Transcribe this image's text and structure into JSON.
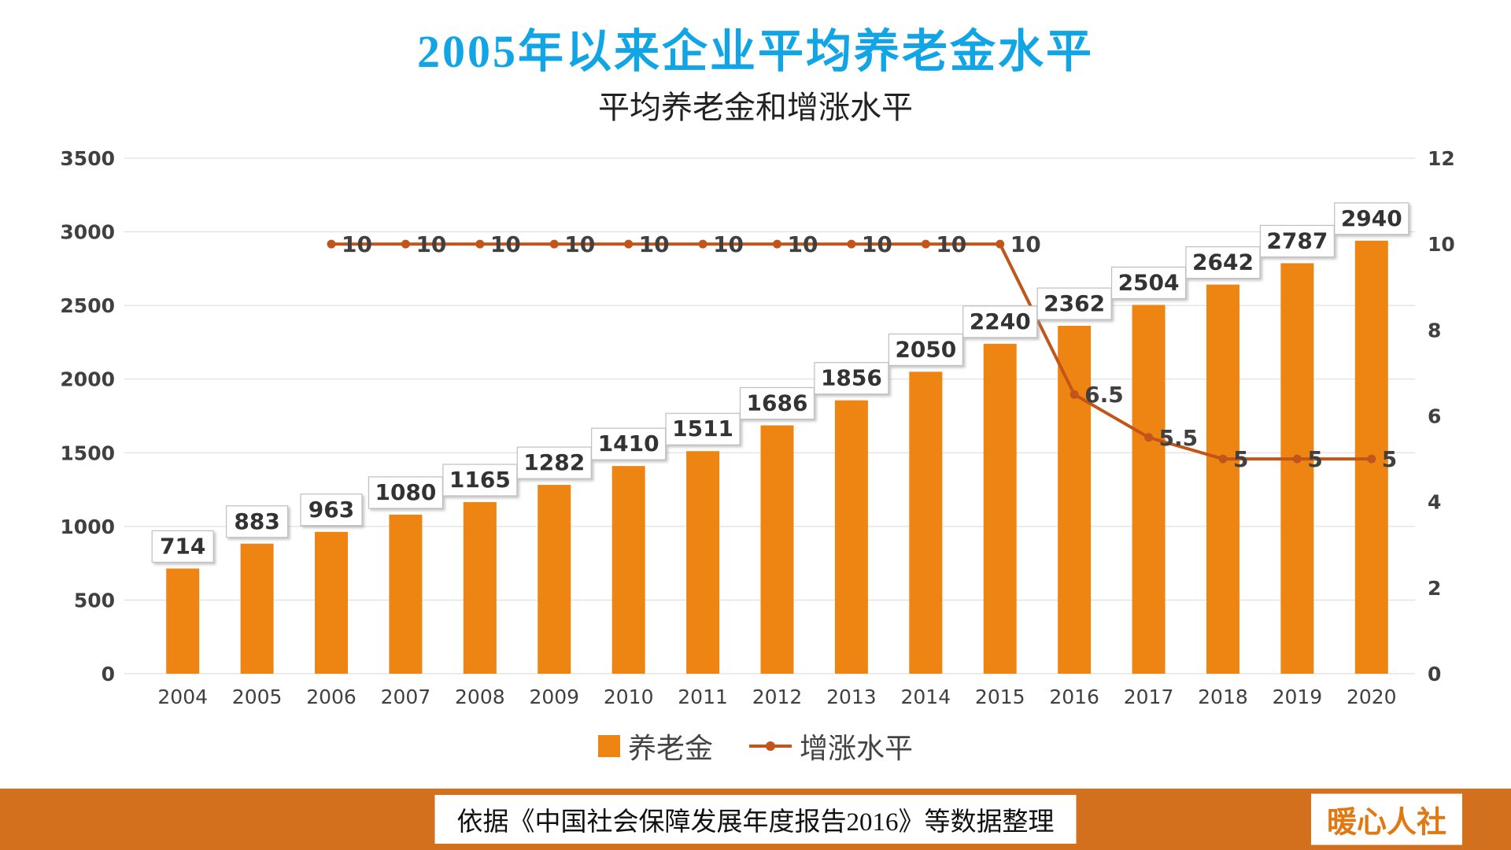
{
  "title": "2005年以来企业平均养老金水平",
  "subtitle": "平均养老金和增涨水平",
  "chart_data": {
    "type": "bar",
    "title": "2005年以来企业平均养老金水平",
    "subtitle": "平均养老金和增涨水平",
    "categories": [
      "2004",
      "2005",
      "2006",
      "2007",
      "2008",
      "2009",
      "2010",
      "2011",
      "2012",
      "2013",
      "2014",
      "2015",
      "2016",
      "2017",
      "2018",
      "2019",
      "2020"
    ],
    "series": [
      {
        "name": "养老金",
        "type": "bar",
        "axis": "left",
        "values": [
          714,
          883,
          963,
          1080,
          1165,
          1282,
          1410,
          1511,
          1686,
          1856,
          2050,
          2240,
          2362,
          2504,
          2642,
          2787,
          2940
        ]
      },
      {
        "name": "增涨水平",
        "type": "line",
        "axis": "right",
        "values": [
          null,
          null,
          10,
          10,
          10,
          10,
          10,
          10,
          10,
          10,
          10,
          10,
          6.5,
          5.5,
          5,
          5,
          5
        ]
      }
    ],
    "left_axis": {
      "min": 0,
      "max": 3500,
      "step": 500,
      "ticks": [
        0,
        500,
        1000,
        1500,
        2000,
        2500,
        3000,
        3500
      ]
    },
    "right_axis": {
      "min": 0,
      "max": 12,
      "step": 2,
      "ticks": [
        0,
        2,
        4,
        6,
        8,
        10,
        12
      ]
    },
    "grid": true,
    "legend_position": "bottom"
  },
  "legend": {
    "bar_label": "养老金",
    "line_label": "增涨水平"
  },
  "footer": {
    "source_text": "依据《中国社会保障发展年度报告2016》等数据整理",
    "brand": "暖心人社"
  },
  "colors": {
    "title": "#12A5E6",
    "bar": "#EE8512",
    "line": "#C2551A",
    "footer_band": "#D2701D",
    "grid": "#D9D9D9",
    "axis_text": "#404040",
    "label_text": "#333333",
    "brand_text": "#E07912"
  }
}
